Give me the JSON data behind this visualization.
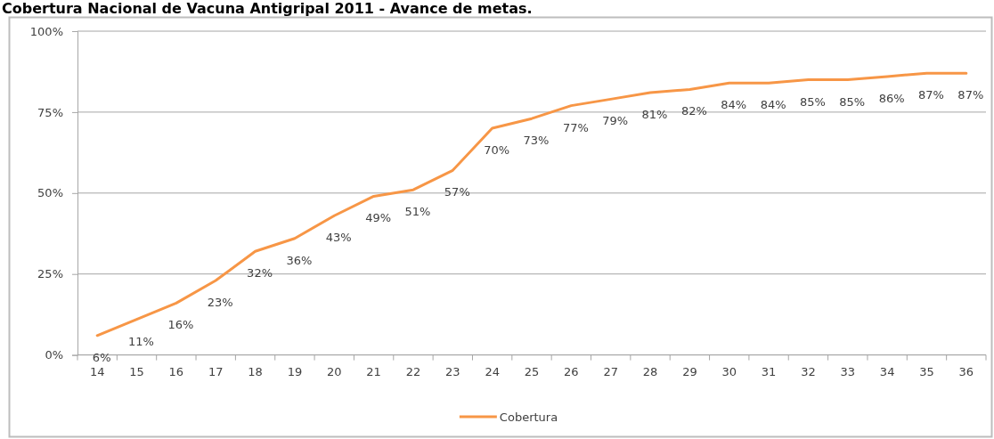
{
  "chart_data": {
    "type": "line",
    "title": "Cobertura Nacional de Vacuna Antigripal 2011 - Avance de metas.",
    "categories": [
      "14",
      "15",
      "16",
      "17",
      "18",
      "19",
      "20",
      "21",
      "22",
      "23",
      "24",
      "25",
      "26",
      "27",
      "28",
      "29",
      "30",
      "31",
      "32",
      "33",
      "34",
      "35",
      "36"
    ],
    "series": [
      {
        "name": "Cobertura",
        "color": "#f79646",
        "values": [
          6,
          11,
          16,
          23,
          32,
          36,
          43,
          49,
          51,
          57,
          70,
          73,
          77,
          79,
          81,
          82,
          84,
          84,
          85,
          85,
          86,
          87,
          87
        ],
        "value_labels": [
          "6%",
          "11%",
          "16%",
          "23%",
          "32%",
          "36%",
          "43%",
          "49%",
          "51%",
          "57%",
          "70%",
          "73%",
          "77%",
          "79%",
          "81%",
          "82%",
          "84%",
          "84%",
          "85%",
          "85%",
          "86%",
          "87%",
          "87%"
        ]
      }
    ],
    "ylim": [
      0,
      100
    ],
    "yticks": [
      {
        "value": 0,
        "label": "0%"
      },
      {
        "value": 25,
        "label": "25%"
      },
      {
        "value": 50,
        "label": "50%"
      },
      {
        "value": 75,
        "label": "75%"
      },
      {
        "value": 100,
        "label": "100%"
      }
    ],
    "grid": "y",
    "legend": "bottom"
  }
}
